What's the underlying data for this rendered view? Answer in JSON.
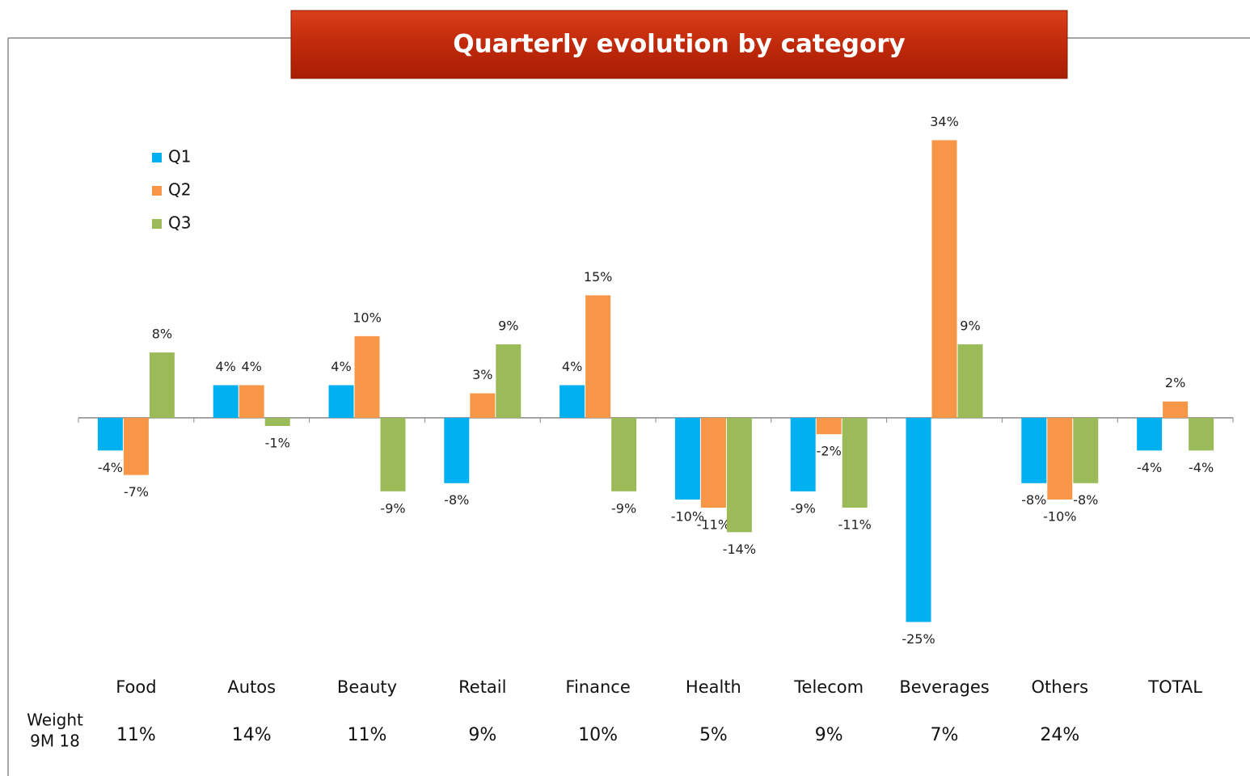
{
  "chart_data": {
    "type": "bar",
    "title": "Quarterly evolution by category",
    "categories": [
      "Food",
      "Autos",
      "Beauty",
      "Retail",
      "Finance",
      "Health",
      "Telecom",
      "Beverages",
      "Others",
      "TOTAL"
    ],
    "series": [
      {
        "name": "Q1",
        "color": "#00b0f0",
        "values": [
          -4,
          4,
          4,
          -8,
          4,
          -10,
          -9,
          -25,
          -8,
          -4
        ],
        "value_labels": [
          "-4%",
          "4%",
          "4%",
          "-8%",
          "4%",
          "-10%",
          "-9%",
          "-25%",
          "-8%",
          "-4%"
        ]
      },
      {
        "name": "Q2",
        "color": "#f79646",
        "values": [
          -7,
          4,
          10,
          3,
          15,
          -11,
          -2,
          34,
          -10,
          2
        ],
        "value_labels": [
          "-7%",
          "4%",
          "10%",
          "3%",
          "15%",
          "-11%",
          "-2%",
          "34%",
          "-10%",
          "2%"
        ]
      },
      {
        "name": "Q3",
        "color": "#9bbb59",
        "values": [
          8,
          -1,
          -9,
          9,
          -9,
          -14,
          -11,
          9,
          -8,
          -4
        ],
        "value_labels": [
          "8%",
          "-1%",
          "-9%",
          "9%",
          "-9%",
          "-14%",
          "-11%",
          "9%",
          "-8%",
          "-4%"
        ]
      }
    ],
    "ylim": [
      -30,
      38
    ],
    "legend": "top-left",
    "weight_label": [
      "Weight",
      "9M 18"
    ],
    "weights": [
      "11%",
      "14%",
      "11%",
      "9%",
      "10%",
      "5%",
      "9%",
      "7%",
      "24%"
    ]
  }
}
